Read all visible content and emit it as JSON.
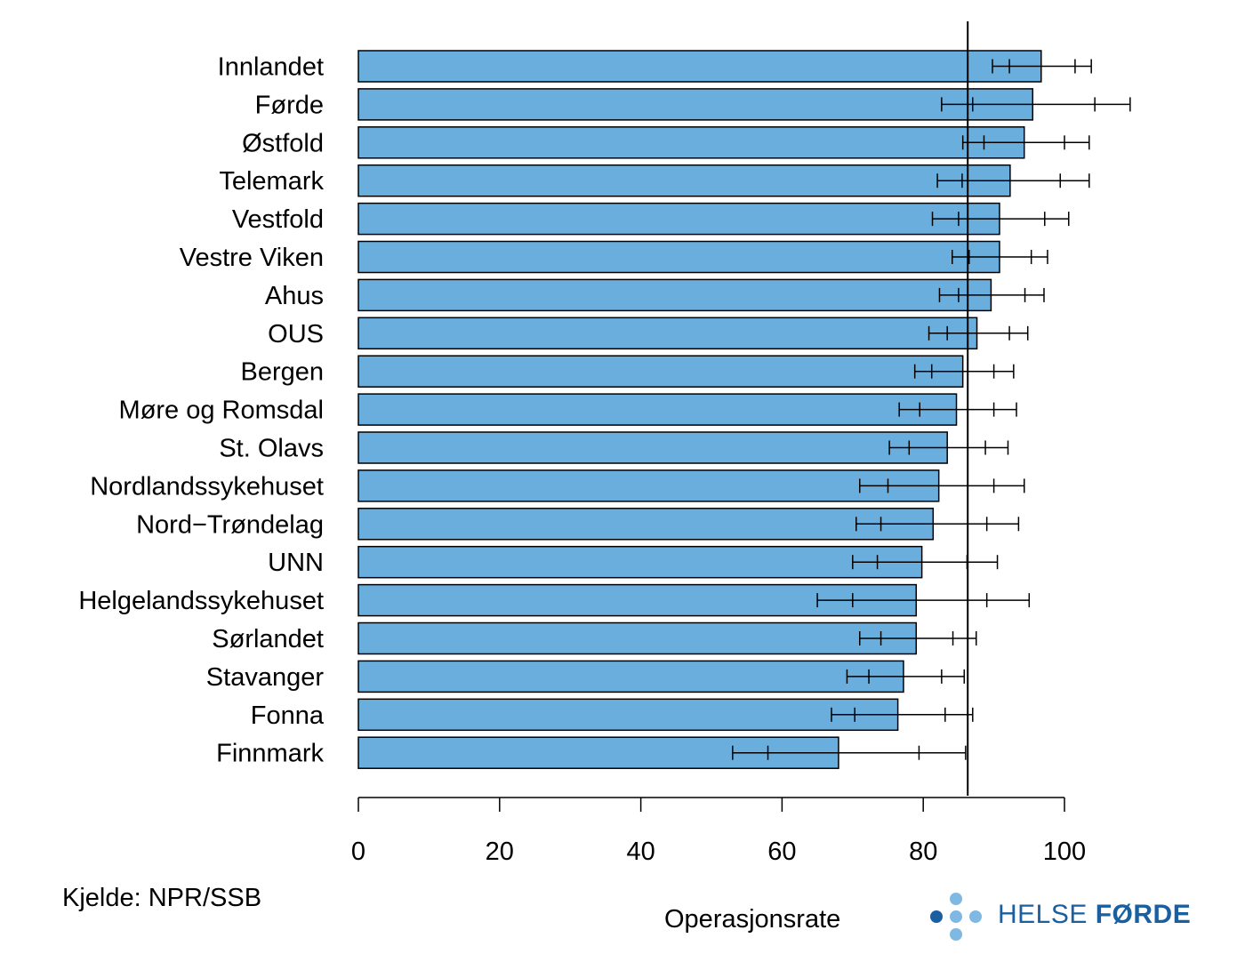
{
  "chart_data": {
    "type": "bar",
    "orientation": "horizontal",
    "categories": [
      "Innlandet",
      "Førde",
      "Østfold",
      "Telemark",
      "Vestfold",
      "Vestre Viken",
      "Ahus",
      "OUS",
      "Bergen",
      "Møre og Romsdal",
      "St. Olavs",
      "Nordlandssykehuset",
      "Nord−Trøndelag",
      "UNN",
      "Helgelandssykehuset",
      "Sørlandet",
      "Stavanger",
      "Fonna",
      "Finnmark"
    ],
    "values": [
      96.7,
      95.5,
      94.3,
      92.3,
      90.8,
      90.8,
      89.6,
      87.6,
      85.6,
      84.7,
      83.4,
      82.2,
      81.4,
      79.8,
      79.0,
      79.0,
      77.2,
      76.4,
      68.0
    ],
    "ci_outer": [
      [
        89.8,
        103.8
      ],
      [
        82.6,
        109.3
      ],
      [
        85.6,
        103.5
      ],
      [
        82.0,
        103.5
      ],
      [
        81.3,
        100.6
      ],
      [
        84.1,
        97.6
      ],
      [
        82.3,
        97.1
      ],
      [
        80.8,
        94.8
      ],
      [
        78.8,
        92.8
      ],
      [
        76.6,
        93.2
      ],
      [
        75.2,
        92.0
      ],
      [
        71.0,
        94.3
      ],
      [
        70.5,
        93.5
      ],
      [
        70.0,
        90.5
      ],
      [
        65.0,
        95.0
      ],
      [
        71.0,
        87.5
      ],
      [
        69.2,
        85.8
      ],
      [
        67.0,
        87.0
      ],
      [
        53.0,
        86.0
      ]
    ],
    "ci_inner": [
      [
        92.2,
        101.5
      ],
      [
        87.0,
        104.3
      ],
      [
        88.6,
        100.0
      ],
      [
        85.5,
        99.4
      ],
      [
        85.0,
        97.2
      ],
      [
        86.5,
        95.3
      ],
      [
        85.0,
        94.4
      ],
      [
        83.4,
        92.2
      ],
      [
        81.2,
        90.0
      ],
      [
        79.5,
        90.0
      ],
      [
        78.0,
        88.8
      ],
      [
        75.0,
        90.0
      ],
      [
        74.0,
        89.0
      ],
      [
        73.5,
        86.2
      ],
      [
        70.0,
        89.0
      ],
      [
        74.0,
        84.2
      ],
      [
        72.3,
        82.6
      ],
      [
        70.3,
        83.1
      ],
      [
        58.0,
        79.4
      ]
    ],
    "reference_line": 86.3,
    "xlim": [
      0,
      100
    ],
    "x_ticks": [
      "0",
      "20",
      "40",
      "60",
      "80",
      "100"
    ],
    "xlabel": "Operasjonsrate",
    "bar_color": "#6aaede"
  },
  "source": "Kjelde: NPR/SSB",
  "logo": {
    "text_light": "HELSE ",
    "text_bold": "FØRDE",
    "color": "#1a5fa0",
    "dot_light": "#7fb8e2",
    "dot_dark": "#1a5fa0"
  }
}
